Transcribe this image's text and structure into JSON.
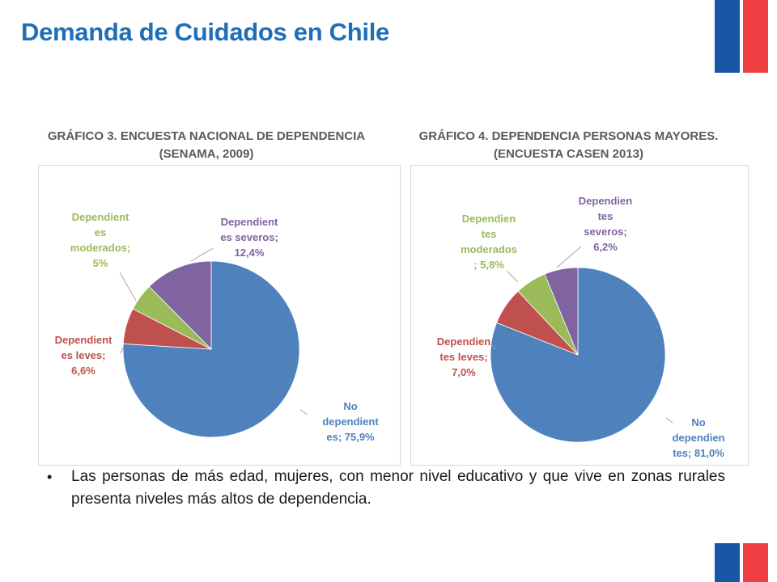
{
  "slide": {
    "title": "Demanda de Cuidados en Chile",
    "bullet": "Las personas de más edad, mujeres, con menor nivel educativo y que vive en zonas rurales presenta niveles más altos de dependencia."
  },
  "colors": {
    "blue": "#4f81bd",
    "red": "#c0504d",
    "green": "#9bbb59",
    "purple": "#8064a2",
    "flag_blue": "#1a56a8",
    "flag_red": "#ef3e42"
  },
  "chart_data": [
    {
      "type": "pie",
      "title": "GRÁFICO 3. ENCUESTA NACIONAL DE DEPENDENCIA\n(SENAMA, 2009)",
      "slices": [
        {
          "name": "No dependientes",
          "value": 75.9,
          "label": "No\ndependient\nes; 75,9%",
          "color": "#4f81bd"
        },
        {
          "name": "Dependientes leves",
          "value": 6.6,
          "label": "Dependient\nes leves;\n6,6%",
          "color": "#c0504d"
        },
        {
          "name": "Dependientes moderados",
          "value": 5,
          "label": "Dependient\nes\nmoderados;\n5%",
          "color": "#9bbb59"
        },
        {
          "name": "Dependientes severos",
          "value": 12.4,
          "label": "Dependient\nes severos;\n12,4%",
          "color": "#8064a2"
        }
      ]
    },
    {
      "type": "pie",
      "title": "GRÁFICO 4. DEPENDENCIA PERSONAS MAYORES.\n(ENCUESTA CASEN 2013)",
      "slices": [
        {
          "name": "No dependientes",
          "value": 81.0,
          "label": "No\ndependien\ntes; 81,0%",
          "color": "#4f81bd"
        },
        {
          "name": "Dependientes leves",
          "value": 7.0,
          "label": "Dependien\ntes leves;\n7,0%",
          "color": "#c0504d"
        },
        {
          "name": "Dependientes moderados",
          "value": 5.8,
          "label": "Dependien\ntes\nmoderados\n; 5,8%",
          "color": "#9bbb59"
        },
        {
          "name": "Dependientes severos",
          "value": 6.2,
          "label": "Dependien\ntes\nseveros;\n6,2%",
          "color": "#8064a2"
        }
      ]
    }
  ]
}
